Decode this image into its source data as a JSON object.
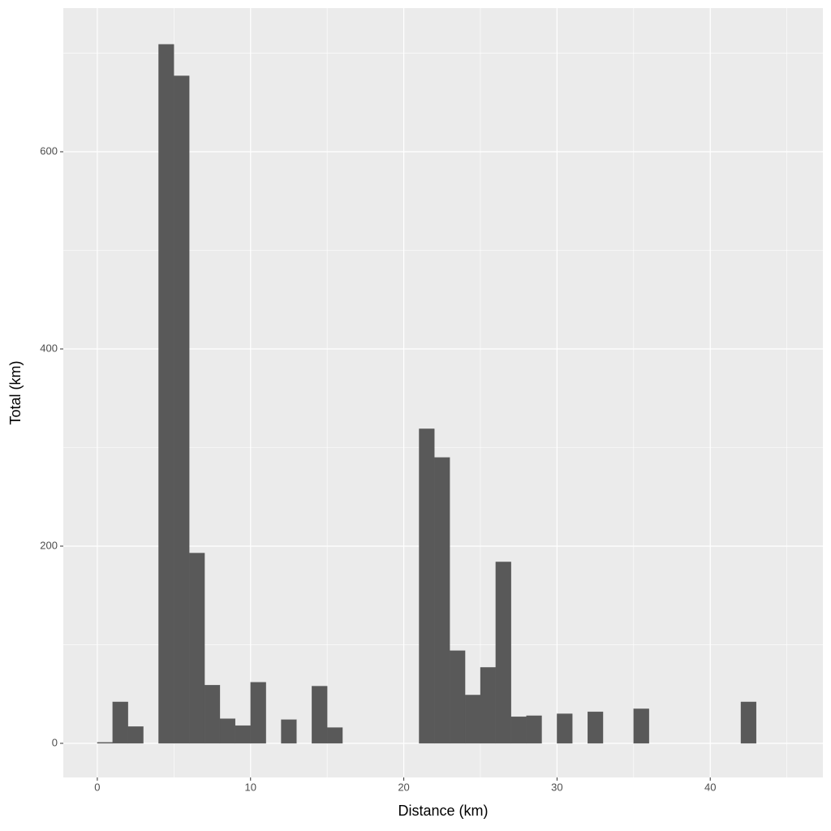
{
  "chart_data": {
    "type": "histogram",
    "x_label": "Distance (km)",
    "y_label": "Total (km)",
    "bins": [
      0,
      1,
      2,
      3,
      4,
      5,
      6,
      7,
      8,
      9,
      10,
      11,
      12,
      13,
      14,
      15,
      16,
      17,
      18,
      19,
      20,
      21,
      22,
      23,
      24,
      25,
      26,
      27,
      28,
      29,
      30,
      31,
      32,
      33,
      34,
      35,
      36,
      37,
      38,
      39,
      40,
      41,
      42,
      43
    ],
    "values": [
      1,
      42,
      17,
      0,
      709,
      677,
      193,
      59,
      25,
      18,
      62,
      0,
      24,
      0,
      58,
      16,
      0,
      0,
      0,
      0,
      0,
      319,
      290,
      94,
      49,
      77,
      184,
      27,
      28,
      0,
      30,
      0,
      32,
      0,
      0,
      35,
      0,
      0,
      0,
      0,
      0,
      0,
      42
    ],
    "color": "#595959",
    "xlim": [
      -2.22,
      47.35
    ],
    "ylim": [
      -34.6,
      745.7
    ],
    "xticks": [
      0,
      10,
      20,
      30,
      40
    ],
    "yticks": [
      0,
      200,
      400,
      600
    ],
    "x_minor_ticks": [
      5,
      15,
      25,
      35,
      45
    ],
    "y_minor_ticks": [
      100,
      300,
      500,
      700
    ],
    "grid": true,
    "panel_color": "#ebebeb"
  }
}
